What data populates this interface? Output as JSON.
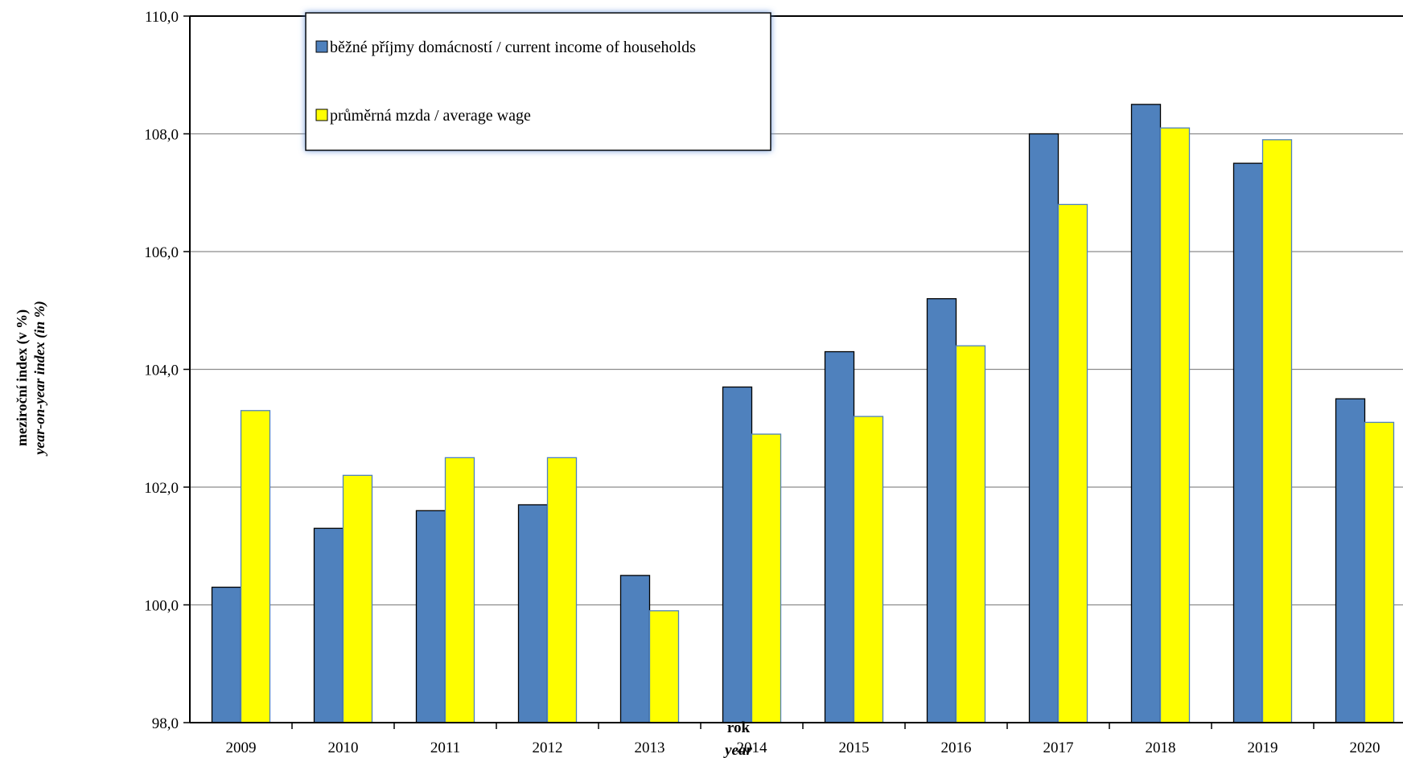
{
  "chart_data": {
    "type": "bar",
    "categories": [
      "2009",
      "2010",
      "2011",
      "2012",
      "2013",
      "2014",
      "2015",
      "2016",
      "2017",
      "2018",
      "2019",
      "2020"
    ],
    "series": [
      {
        "name": "běžné příjmy domácností / current income of households",
        "color": "#4f81bd",
        "values": [
          100.3,
          101.3,
          101.6,
          101.7,
          100.5,
          103.7,
          104.3,
          105.2,
          108.0,
          108.5,
          107.5,
          103.5
        ]
      },
      {
        "name": "průměrná mzda / average wage",
        "color": "#ffff00",
        "values": [
          103.3,
          102.2,
          102.5,
          102.5,
          99.9,
          102.9,
          103.2,
          104.4,
          106.8,
          108.1,
          107.9,
          103.1
        ]
      }
    ],
    "ylim": [
      98,
      110
    ],
    "yticks": [
      "98,0",
      "100,0",
      "102,0",
      "104,0",
      "106,0",
      "108,0",
      "110,0"
    ],
    "ylabel": "meziroční index (v %)",
    "ylabel2": "year-on-year index (in %)",
    "xlabel": "rok",
    "xlabel2": "year",
    "grid": true,
    "legend_position": "top-left"
  }
}
